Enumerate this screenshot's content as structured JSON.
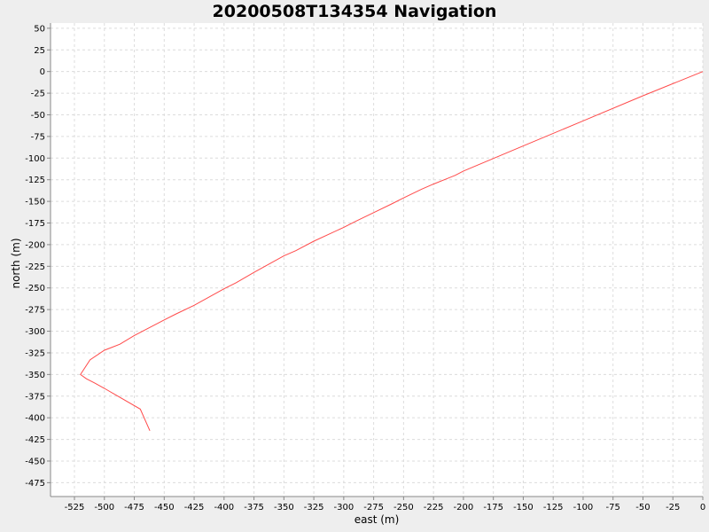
{
  "chart_data": {
    "type": "line",
    "title": "20200508T134354 Navigation",
    "xlabel": "east (m)",
    "ylabel": "north (m)",
    "xlim": [
      -545,
      0
    ],
    "ylim": [
      -491,
      56
    ],
    "xticks": [
      -525,
      -500,
      -475,
      -450,
      -425,
      -400,
      -375,
      -350,
      -325,
      -300,
      -275,
      -250,
      -225,
      -200,
      -175,
      -150,
      -125,
      -100,
      -75,
      -50,
      -25,
      0
    ],
    "yticks": [
      50,
      25,
      0,
      -25,
      -50,
      -75,
      -100,
      -125,
      -150,
      -175,
      -200,
      -225,
      -250,
      -275,
      -300,
      -325,
      -350,
      -375,
      -400,
      -425,
      -450,
      -475
    ],
    "grid": true,
    "series": [
      {
        "color": "#ff4a4a",
        "x": [
          0,
          -50,
          -100,
          -150,
          -200,
          -207,
          -225,
          -235,
          -250,
          -260,
          -275,
          -290,
          -300,
          -325,
          -340,
          -350,
          -375,
          -390,
          -400,
          -425,
          -440,
          -450,
          -475,
          -487,
          -500,
          -512,
          -520,
          -515,
          -508,
          -500,
          -490,
          -470,
          -462
        ],
        "y": [
          0,
          -28,
          -57,
          -86,
          -115,
          -120,
          -130,
          -136,
          -146,
          -153,
          -163,
          -173,
          -180,
          -196,
          -207,
          -213,
          -232,
          -244,
          -251,
          -270,
          -280,
          -287,
          -305,
          -315,
          -322,
          -333,
          -350,
          -355,
          -360,
          -366,
          -374,
          -390,
          -415
        ]
      }
    ]
  }
}
